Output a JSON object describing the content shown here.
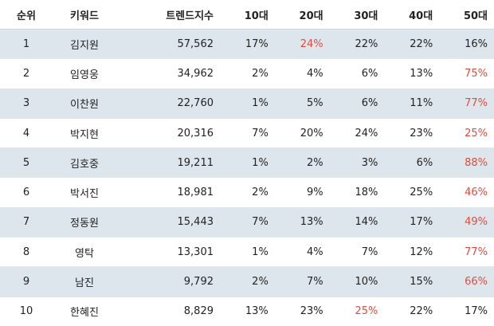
{
  "colors": {
    "highlight": "#e34b3c",
    "band": "#dde6ec"
  },
  "headers": [
    "순위",
    "키워드",
    "트렌드지수",
    "10대",
    "20대",
    "30대",
    "40대",
    "50대"
  ],
  "rows": [
    {
      "rank": "1",
      "keyword": "김지원",
      "index": "57,562",
      "ages": [
        "17%",
        "24%",
        "22%",
        "22%",
        "16%"
      ],
      "highlight": 1
    },
    {
      "rank": "2",
      "keyword": "임영웅",
      "index": "34,962",
      "ages": [
        "2%",
        "4%",
        "6%",
        "13%",
        "75%"
      ],
      "highlight": 4
    },
    {
      "rank": "3",
      "keyword": "이찬원",
      "index": "22,760",
      "ages": [
        "1%",
        "5%",
        "6%",
        "11%",
        "77%"
      ],
      "highlight": 4
    },
    {
      "rank": "4",
      "keyword": "박지현",
      "index": "20,316",
      "ages": [
        "7%",
        "20%",
        "24%",
        "23%",
        "25%"
      ],
      "highlight": 4
    },
    {
      "rank": "5",
      "keyword": "김호중",
      "index": "19,211",
      "ages": [
        "1%",
        "2%",
        "3%",
        "6%",
        "88%"
      ],
      "highlight": 4
    },
    {
      "rank": "6",
      "keyword": "박서진",
      "index": "18,981",
      "ages": [
        "2%",
        "9%",
        "18%",
        "25%",
        "46%"
      ],
      "highlight": 4
    },
    {
      "rank": "7",
      "keyword": "정동원",
      "index": "15,443",
      "ages": [
        "7%",
        "13%",
        "14%",
        "17%",
        "49%"
      ],
      "highlight": 4
    },
    {
      "rank": "8",
      "keyword": "영탁",
      "index": "13,301",
      "ages": [
        "1%",
        "4%",
        "7%",
        "12%",
        "77%"
      ],
      "highlight": 4
    },
    {
      "rank": "9",
      "keyword": "남진",
      "index": "9,792",
      "ages": [
        "2%",
        "7%",
        "10%",
        "15%",
        "66%"
      ],
      "highlight": 4
    },
    {
      "rank": "10",
      "keyword": "한혜진",
      "index": "8,829",
      "ages": [
        "13%",
        "23%",
        "25%",
        "22%",
        "17%"
      ],
      "highlight": 2
    }
  ]
}
